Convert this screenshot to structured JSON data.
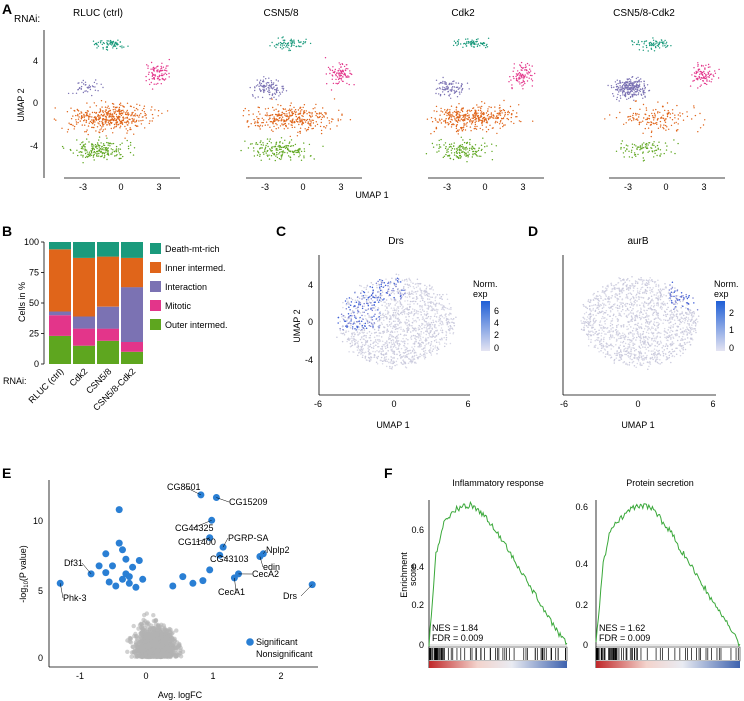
{
  "panels": {
    "A": {
      "label": "A",
      "rnai_label": "RNAi:",
      "titles": [
        "RLUC (ctrl)",
        "CSN5/8",
        "Cdk2",
        "CSN5/8-Cdk2"
      ],
      "xlabel": "UMAP 1",
      "ylabel": "UMAP 2",
      "xticks": [
        "-3",
        "0",
        "3"
      ],
      "yticks": [
        "4",
        "0",
        "-4"
      ]
    },
    "B": {
      "label": "B",
      "rnai_label": "RNAi:",
      "ylabel": "Cells in %",
      "yticks": [
        "100",
        "75",
        "50",
        "25",
        "0"
      ],
      "legend": [
        "Death-mt-rich",
        "Inner intermed.",
        "Interaction",
        "Mitotic",
        "Outer intermed."
      ]
    },
    "C": {
      "label": "C",
      "title": "Drs",
      "xlabel": "UMAP 1",
      "ylabel": "UMAP 2",
      "xticks": [
        "-6",
        "0",
        "6"
      ],
      "yticks": [
        "4",
        "0",
        "-4"
      ],
      "legend_title": "Norm.\nexp",
      "legend_ticks": [
        "6",
        "4",
        "2",
        "0"
      ]
    },
    "D": {
      "label": "D",
      "title": "aurB",
      "xlabel": "UMAP 1",
      "xticks": [
        "-6",
        "0",
        "6"
      ],
      "legend_title": "Norm.\nexp",
      "legend_ticks": [
        "2",
        "1",
        "0"
      ]
    },
    "E": {
      "label": "E",
      "xlabel": "Avg. logFC",
      "ylabel": "-log10(P value)",
      "xticks": [
        "-1",
        "0",
        "1",
        "2"
      ],
      "yticks": [
        "10",
        "5",
        "0"
      ],
      "legend": [
        "Significant",
        "Nonsignificant"
      ],
      "gene_labels": [
        "CG8501",
        "CG15209",
        "CG44325",
        "CG11400",
        "PGRP-SA",
        "CG43103",
        "Nplp2",
        "edin",
        "CecA2",
        "CecA1",
        "Drs",
        "Df31",
        "Phk-3"
      ]
    },
    "F": {
      "label": "F",
      "ylabel": "Enrichment score",
      "yticks": [
        "0.6",
        "0.4",
        "0.2",
        "0"
      ],
      "plots": [
        {
          "title": "Inflammatory response",
          "nes": "NES = 1.84",
          "fdr": "FDR = 0.009"
        },
        {
          "title": "Protein secretion",
          "nes": "NES = 1.62",
          "fdr": "FDR = 0.009"
        }
      ]
    }
  },
  "colors": {
    "death_mt_rich": "#1a9a7c",
    "inner_intermed": "#e0651a",
    "interaction": "#7b72b3",
    "mitotic": "#e3358a",
    "outer_intermed": "#5ea61f",
    "significant": "#2a7fd4",
    "nonsignificant": "#b3b3b3",
    "gsea_line": "#3aa83a"
  },
  "chart_data": [
    {
      "type": "bar",
      "title": "",
      "ylabel": "Cells in %",
      "ylim": [
        0,
        100
      ],
      "categories": [
        "RLUC (ctrl)",
        "Cdk2",
        "CSN5/8",
        "CSN5/8-Cdk2"
      ],
      "series": [
        {
          "name": "Outer intermed.",
          "values": [
            23,
            15,
            19,
            10
          ]
        },
        {
          "name": "Mitotic",
          "values": [
            17,
            14,
            10,
            8
          ]
        },
        {
          "name": "Interaction",
          "values": [
            3,
            10,
            18,
            45
          ]
        },
        {
          "name": "Inner intermed.",
          "values": [
            51,
            48,
            41,
            24
          ]
        },
        {
          "name": "Death-mt-rich",
          "values": [
            6,
            13,
            12,
            13
          ]
        }
      ]
    },
    {
      "type": "scatter",
      "title": "",
      "xlabel": "Avg. logFC",
      "ylabel": "-log10(P value)",
      "xlim": [
        -1.5,
        2.6
      ],
      "ylim": [
        -0.5,
        12.5
      ],
      "labeled_points": [
        {
          "name": "CG8501",
          "x": 0.82,
          "y": 12.1
        },
        {
          "name": "CG15209",
          "x": 1.05,
          "y": 11.9
        },
        {
          "name": "CG44325",
          "x": 0.98,
          "y": 10.2
        },
        {
          "name": "CG11400",
          "x": 0.95,
          "y": 8.9
        },
        {
          "name": "PGRP-SA",
          "x": 1.15,
          "y": 8.2
        },
        {
          "name": "CG43103",
          "x": 1.1,
          "y": 7.6
        },
        {
          "name": "Nplp2",
          "x": 1.75,
          "y": 7.7
        },
        {
          "name": "edin",
          "x": 1.7,
          "y": 7.5
        },
        {
          "name": "CecA2",
          "x": 1.38,
          "y": 6.2
        },
        {
          "name": "CecA1",
          "x": 1.32,
          "y": 5.9
        },
        {
          "name": "Drs",
          "x": 2.48,
          "y": 5.4
        },
        {
          "name": "Df31",
          "x": -0.82,
          "y": 6.2
        },
        {
          "name": "Phk-3",
          "x": -1.28,
          "y": 5.5
        }
      ]
    },
    {
      "type": "line",
      "title": "Inflammatory response",
      "ylabel": "Enrichment score",
      "ylim": [
        -0.05,
        0.72
      ],
      "x": [
        0,
        0.05,
        0.1,
        0.2,
        0.3,
        0.4,
        0.5,
        0.6,
        0.7,
        0.8,
        0.9,
        1.0
      ],
      "values": [
        0,
        0.45,
        0.6,
        0.68,
        0.7,
        0.65,
        0.55,
        0.45,
        0.33,
        0.22,
        0.1,
        0.0
      ]
    },
    {
      "type": "line",
      "title": "Protein secretion",
      "ylabel": "",
      "ylim": [
        -0.05,
        0.62
      ],
      "x": [
        0,
        0.05,
        0.1,
        0.2,
        0.3,
        0.4,
        0.5,
        0.6,
        0.7,
        0.8,
        0.9,
        1.0
      ],
      "values": [
        0,
        0.35,
        0.5,
        0.56,
        0.6,
        0.58,
        0.5,
        0.4,
        0.3,
        0.2,
        0.1,
        0.0
      ]
    }
  ]
}
